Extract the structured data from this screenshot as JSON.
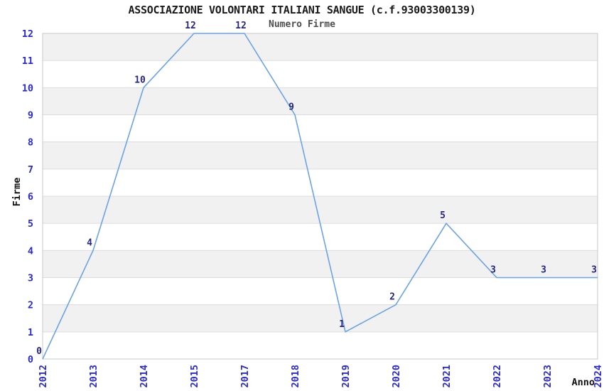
{
  "chart_data": {
    "type": "line",
    "title": "ASSOCIAZIONE VOLONTARI ITALIANI SANGUE (c.f.93003300139)",
    "subtitle": "Numero Firme",
    "xlabel": "Anno",
    "ylabel": "Firme",
    "categories": [
      "2012",
      "2013",
      "2014",
      "2015",
      "2017",
      "2018",
      "2019",
      "2020",
      "2021",
      "2022",
      "2023",
      "2024"
    ],
    "values": [
      0,
      4,
      10,
      12,
      12,
      9,
      1,
      2,
      5,
      3,
      3,
      3
    ],
    "ylim": [
      0,
      12
    ],
    "y_ticks": [
      0,
      1,
      2,
      3,
      4,
      5,
      6,
      7,
      8,
      9,
      10,
      11,
      12
    ],
    "x_tick_rotation_degrees": 90,
    "legend": "none",
    "grid": "horizontal gridlines at each integer with alternating shaded bands",
    "data_labels_shown": true,
    "colors": {
      "line": "#6ba3e5",
      "band": "#f1f1f1",
      "grid": "#dcdcdc",
      "plot_border": "#c9c9c9",
      "tick_label": "#2a2ad0",
      "data_label": "#26267e",
      "title": "#1a1a1a",
      "subtitle": "#4d4d4d",
      "background": "#ffffff"
    }
  }
}
